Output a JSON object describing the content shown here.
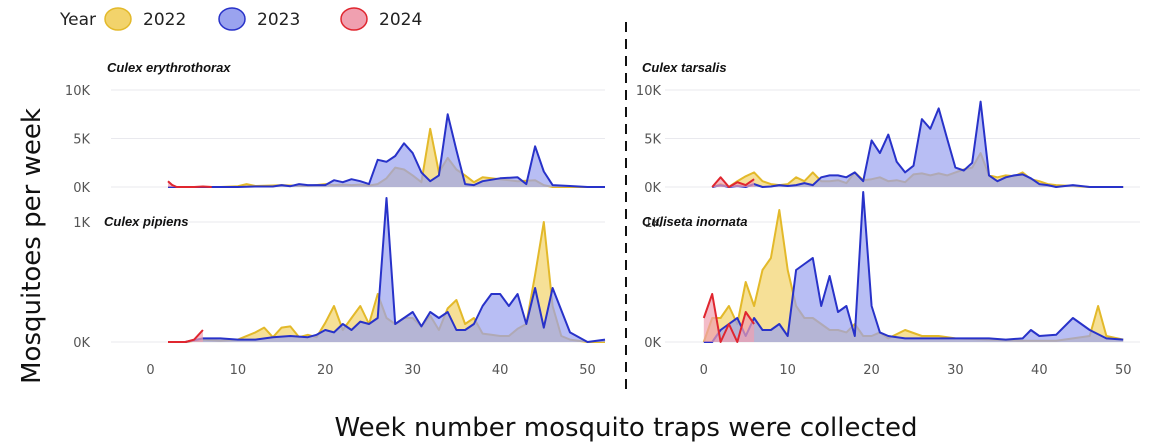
{
  "chart_data": {
    "type": "area",
    "xlabel": "Week number mosquito traps were collected",
    "ylabel": "Mosquitoes per week",
    "legend": {
      "title": "Year",
      "placement": "top-left",
      "entries": [
        {
          "name": "2022",
          "fill": "#f2d36b",
          "stroke": "#e3b92a"
        },
        {
          "name": "2023",
          "fill": "#9aa3ef",
          "stroke": "#2832c9"
        },
        {
          "name": "2024",
          "fill": "#f0a0b0",
          "stroke": "#e0262f"
        }
      ]
    },
    "x_ticks": [
      "0",
      "10",
      "20",
      "30",
      "40",
      "50"
    ],
    "xlim": [
      -2,
      52
    ],
    "panels": [
      {
        "title": "Culex erythrothorax",
        "ylim": [
          0,
          10000
        ],
        "y_ticks": [
          {
            "value": 0,
            "label": "0K"
          },
          {
            "value": 5000,
            "label": "5K"
          },
          {
            "value": 10000,
            "label": "10K"
          }
        ],
        "series": [
          {
            "name": "2022",
            "x": [
              2,
              4,
              6,
              8,
              10,
              11,
              12,
              14,
              15,
              16,
              18,
              20,
              21,
              22,
              23,
              24,
              25,
              26,
              27,
              28,
              29,
              30,
              31,
              32,
              33,
              34,
              35,
              36,
              37,
              38,
              40,
              42,
              44,
              45,
              46,
              48,
              50,
              52
            ],
            "y": [
              0,
              0,
              0,
              0,
              80,
              300,
              100,
              150,
              200,
              150,
              100,
              300,
              200,
              250,
              200,
              250,
              150,
              300,
              900,
              2000,
              1800,
              1200,
              500,
              6000,
              1500,
              3000,
              1800,
              1200,
              500,
              1000,
              800,
              600,
              700,
              200,
              0,
              0,
              0,
              0
            ]
          },
          {
            "name": "2023",
            "x": [
              2,
              4,
              6,
              8,
              10,
              12,
              14,
              15,
              16,
              17,
              18,
              20,
              21,
              22,
              23,
              24,
              25,
              26,
              27,
              28,
              29,
              30,
              31,
              32,
              33,
              34,
              35,
              36,
              37,
              38,
              40,
              42,
              43,
              44,
              45,
              46,
              48,
              50,
              52
            ],
            "y": [
              0,
              0,
              0,
              0,
              0,
              50,
              50,
              200,
              80,
              300,
              200,
              200,
              700,
              500,
              800,
              600,
              300,
              2800,
              2600,
              3200,
              4500,
              3500,
              1500,
              600,
              1200,
              7500,
              3800,
              300,
              200,
              600,
              900,
              1000,
              300,
              4200,
              1600,
              200,
              100,
              0,
              0
            ]
          },
          {
            "name": "2024",
            "x": [
              2,
              2.5,
              3,
              4,
              5,
              6,
              7
            ],
            "y": [
              600,
              200,
              0,
              0,
              0,
              50,
              0
            ]
          }
        ]
      },
      {
        "title": "Culex tarsalis",
        "ylim": [
          0,
          10000
        ],
        "y_ticks": [
          {
            "value": 0,
            "label": "0K"
          },
          {
            "value": 5000,
            "label": "5K"
          },
          {
            "value": 10000,
            "label": "10K"
          }
        ],
        "series": [
          {
            "name": "2022",
            "x": [
              1,
              2,
              3,
              4,
              5,
              6,
              7,
              8,
              9,
              10,
              11,
              12,
              13,
              14,
              15,
              16,
              17,
              18,
              19,
              20,
              21,
              22,
              23,
              24,
              25,
              26,
              27,
              28,
              29,
              30,
              31,
              32,
              33,
              34,
              35,
              36,
              37,
              38,
              39,
              40,
              41,
              42,
              44,
              46,
              48,
              50
            ],
            "y": [
              0,
              300,
              0,
              600,
              1100,
              1500,
              600,
              300,
              200,
              300,
              1000,
              600,
              1500,
              600,
              600,
              700,
              400,
              1500,
              700,
              800,
              1000,
              600,
              700,
              500,
              1300,
              1400,
              1200,
              1400,
              1200,
              1500,
              1800,
              2000,
              3500,
              1200,
              1000,
              1200,
              1100,
              1500,
              800,
              600,
              300,
              200,
              100,
              0,
              0,
              0
            ]
          },
          {
            "name": "2023",
            "x": [
              1,
              2,
              3,
              4,
              5,
              6,
              7,
              8,
              9,
              10,
              11,
              12,
              13,
              14,
              15,
              16,
              17,
              18,
              19,
              20,
              21,
              22,
              23,
              24,
              25,
              26,
              27,
              28,
              29,
              30,
              31,
              32,
              33,
              34,
              35,
              36,
              37,
              38,
              39,
              40,
              41,
              42,
              44,
              46,
              48,
              50
            ],
            "y": [
              0,
              200,
              0,
              100,
              0,
              300,
              0,
              50,
              200,
              100,
              200,
              400,
              200,
              1000,
              1200,
              1200,
              1000,
              1500,
              600,
              4800,
              3500,
              5400,
              2600,
              1500,
              2200,
              7000,
              6000,
              8100,
              5000,
              2000,
              1700,
              2500,
              8800,
              1200,
              600,
              1000,
              1200,
              1300,
              900,
              300,
              200,
              0,
              200,
              0,
              0,
              0
            ]
          },
          {
            "name": "2024",
            "x": [
              1,
              2,
              3,
              4,
              5,
              6
            ],
            "y": [
              0,
              1000,
              0,
              500,
              200,
              800
            ]
          }
        ]
      },
      {
        "title": "Culex pipiens",
        "ylim": [
          0,
          1300
        ],
        "y_ticks": [
          {
            "value": 0,
            "label": "0K"
          },
          {
            "value": 1000,
            "label": "1K"
          }
        ],
        "series": [
          {
            "name": "2022",
            "x": [
              2,
              4,
              6,
              8,
              10,
              12,
              13,
              14,
              15,
              16,
              17,
              18,
              19,
              20,
              21,
              22,
              23,
              24,
              25,
              26,
              27,
              28,
              29,
              30,
              31,
              32,
              33,
              34,
              35,
              36,
              37,
              38,
              39,
              40,
              41,
              42,
              43,
              44,
              45,
              46,
              47,
              48,
              50,
              52
            ],
            "y": [
              0,
              0,
              20,
              10,
              20,
              80,
              120,
              40,
              120,
              130,
              40,
              60,
              40,
              160,
              300,
              100,
              200,
              300,
              150,
              400,
              200,
              150,
              200,
              200,
              130,
              220,
              100,
              280,
              350,
              150,
              200,
              70,
              60,
              50,
              50,
              110,
              150,
              560,
              1000,
              300,
              50,
              20,
              0,
              0
            ]
          },
          {
            "name": "2023",
            "x": [
              2,
              4,
              6,
              8,
              10,
              12,
              14,
              16,
              18,
              19,
              20,
              21,
              22,
              23,
              24,
              25,
              26,
              27,
              28,
              29,
              30,
              31,
              32,
              33,
              34,
              35,
              36,
              37,
              38,
              39,
              40,
              41,
              42,
              43,
              44,
              45,
              46,
              48,
              50,
              52
            ],
            "y": [
              0,
              0,
              30,
              30,
              20,
              20,
              40,
              50,
              40,
              60,
              100,
              80,
              150,
              100,
              170,
              150,
              200,
              1200,
              150,
              200,
              250,
              130,
              250,
              200,
              250,
              100,
              100,
              150,
              300,
              400,
              400,
              300,
              400,
              150,
              450,
              120,
              450,
              80,
              0,
              20
            ]
          },
          {
            "name": "2024",
            "x": [
              2,
              3,
              4,
              5,
              6
            ],
            "y": [
              0,
              0,
              0,
              20,
              100
            ]
          }
        ]
      },
      {
        "title": "Culiseta inornata",
        "ylim": [
          0,
          1300
        ],
        "y_ticks": [
          {
            "value": 0,
            "label": "0K"
          },
          {
            "value": 1000,
            "label": "1K"
          }
        ],
        "series": [
          {
            "name": "2022",
            "x": [
              0,
              1,
              2,
              3,
              4,
              5,
              6,
              7,
              8,
              9,
              10,
              11,
              12,
              13,
              14,
              15,
              16,
              17,
              18,
              19,
              20,
              21,
              22,
              24,
              26,
              28,
              30,
              34,
              38,
              40,
              42,
              44,
              46,
              47,
              48,
              50
            ],
            "y": [
              0,
              200,
              200,
              300,
              150,
              500,
              300,
              600,
              700,
              1100,
              600,
              300,
              200,
              200,
              150,
              100,
              100,
              80,
              150,
              50,
              50,
              80,
              30,
              100,
              50,
              50,
              30,
              20,
              10,
              10,
              10,
              30,
              50,
              300,
              50,
              20
            ]
          },
          {
            "name": "2023",
            "x": [
              0,
              1,
              2,
              3,
              4,
              5,
              6,
              7,
              8,
              9,
              10,
              11,
              12,
              13,
              14,
              15,
              16,
              17,
              18,
              19,
              20,
              21,
              22,
              24,
              26,
              28,
              30,
              32,
              34,
              36,
              38,
              39,
              40,
              42,
              44,
              46,
              48,
              50
            ],
            "y": [
              0,
              0,
              100,
              150,
              200,
              50,
              200,
              100,
              100,
              150,
              50,
              600,
              650,
              700,
              300,
              550,
              250,
              300,
              50,
              1250,
              300,
              80,
              50,
              30,
              30,
              30,
              30,
              30,
              30,
              20,
              30,
              100,
              50,
              60,
              200,
              100,
              30,
              20
            ]
          },
          {
            "name": "2024",
            "x": [
              0,
              1,
              2,
              3,
              4,
              5,
              6
            ],
            "y": [
              200,
              400,
              0,
              150,
              0,
              250,
              150
            ]
          }
        ]
      }
    ]
  }
}
